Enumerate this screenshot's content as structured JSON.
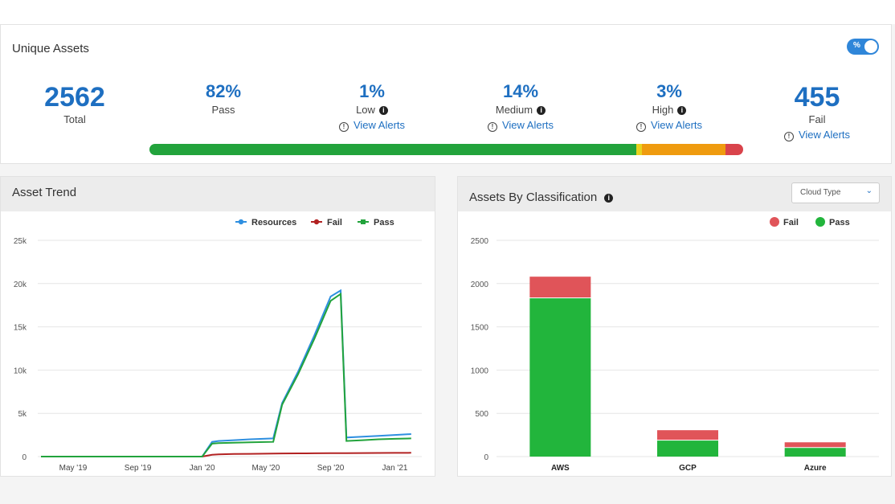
{
  "summary": {
    "title": "Unique Assets",
    "toggle_label": "%",
    "total": {
      "value": "2562",
      "label": "Total"
    },
    "pass": {
      "value": "82%",
      "label": "Pass"
    },
    "low": {
      "value": "1%",
      "label": "Low",
      "link": "View Alerts"
    },
    "medium": {
      "value": "14%",
      "label": "Medium",
      "link": "View Alerts"
    },
    "high": {
      "value": "3%",
      "label": "High",
      "link": "View Alerts"
    },
    "fail": {
      "value": "455",
      "label": "Fail",
      "link": "View Alerts"
    },
    "progress": [
      {
        "name": "pass",
        "fraction": 0.82,
        "color": "#22a33c"
      },
      {
        "name": "low",
        "fraction": 0.01,
        "color": "#e8d21f"
      },
      {
        "name": "medium",
        "fraction": 0.14,
        "color": "#ef9b0f"
      },
      {
        "name": "high",
        "fraction": 0.03,
        "color": "#d9434b"
      }
    ]
  },
  "trend": {
    "title": "Asset Trend"
  },
  "classification": {
    "title": "Assets By Classification",
    "dropdown_label": "Cloud Type"
  },
  "chart_data": [
    {
      "type": "line",
      "title": "Asset Trend",
      "x_ticks": [
        "May '19",
        "Sep '19",
        "Jan '20",
        "May '20",
        "Sep '20",
        "Jan '21"
      ],
      "y_ticks": [
        "0",
        "5k",
        "10k",
        "15k",
        "20k",
        "25k"
      ],
      "ylim": [
        0,
        25000
      ],
      "legend_position": "top-right",
      "grid": true,
      "x": [
        "2019-03",
        "2019-05",
        "2019-07",
        "2019-09",
        "2019-11",
        "2020-01",
        "2020-01-20",
        "2020-02",
        "2020-03",
        "2020-04",
        "2020-05-15",
        "2020-06",
        "2020-07",
        "2020-08",
        "2020-09",
        "2020-09-20",
        "2020-10",
        "2020-11",
        "2020-12",
        "2021-01",
        "2021-02"
      ],
      "series": [
        {
          "name": "Resources",
          "color": "#2e8fe0",
          "values": [
            0,
            0,
            0,
            0,
            0,
            0,
            1700,
            1800,
            1900,
            2000,
            2100,
            6200,
            9800,
            14000,
            18500,
            19200,
            2200,
            2300,
            2400,
            2500,
            2600
          ]
        },
        {
          "name": "Fail",
          "color": "#b22222",
          "values": [
            0,
            0,
            0,
            0,
            0,
            0,
            200,
            250,
            300,
            320,
            350,
            360,
            370,
            380,
            390,
            400,
            400,
            410,
            420,
            430,
            440
          ]
        },
        {
          "name": "Pass",
          "color": "#22a33c",
          "values": [
            0,
            0,
            0,
            0,
            0,
            0,
            1500,
            1550,
            1600,
            1650,
            1700,
            6000,
            9500,
            13600,
            18000,
            18800,
            1800,
            1900,
            2000,
            2050,
            2100
          ]
        }
      ]
    },
    {
      "type": "bar",
      "title": "Assets By Classification",
      "categories": [
        "AWS",
        "GCP",
        "Azure"
      ],
      "y_ticks": [
        "0",
        "500",
        "1000",
        "1500",
        "2000",
        "2500"
      ],
      "ylim": [
        0,
        2500
      ],
      "legend_position": "top-right",
      "grid": true,
      "stacked": true,
      "series": [
        {
          "name": "Fail",
          "color": "#e05459",
          "values": [
            250,
            120,
            65
          ]
        },
        {
          "name": "Pass",
          "color": "#22b53c",
          "values": [
            1830,
            185,
            100
          ]
        }
      ]
    }
  ]
}
